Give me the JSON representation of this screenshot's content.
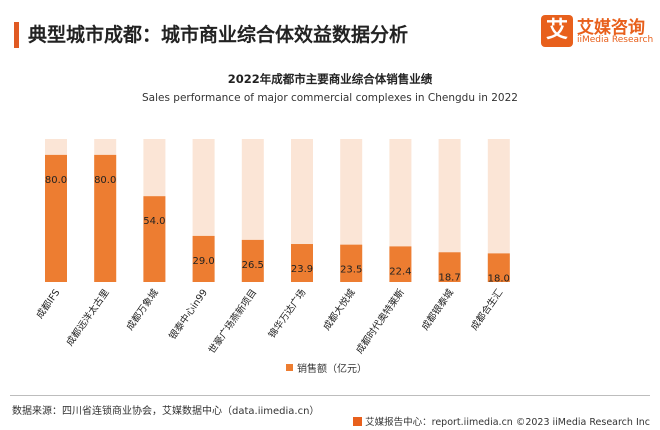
{
  "header": {
    "title": "典型城市成都：城市商业综合体效益数据分析"
  },
  "logo": {
    "mark": "艾",
    "name_cn": "艾媒咨询",
    "name_en": "iiMedia Research"
  },
  "colors": {
    "accent": "#e05a23",
    "bar": "#ed7d31",
    "bar_background": "#fbe5d6",
    "brand": "#e8601c"
  },
  "chart_data": {
    "type": "bar",
    "title": "2022年成都市主要商业综合体销售业绩",
    "subtitle": "Sales performance of major commercial complexes in Chengdu in 2022",
    "categories": [
      "成都IFS",
      "成都远洋太古里",
      "成都万象城",
      "银泰中心in99",
      "世豪广场燕新项目",
      "锦华万达广场",
      "成都大悦城",
      "成都时代奥特莱斯",
      "成都银泰城",
      "成都合生汇"
    ],
    "series": [
      {
        "name": "销售额（亿元）",
        "values": [
          80.0,
          80.0,
          54.0,
          29.0,
          26.5,
          23.9,
          23.5,
          22.4,
          18.7,
          18.0
        ]
      }
    ],
    "value_labels": [
      "80.0",
      "80.0",
      "54.0",
      "29.0",
      "26.5",
      "23.9",
      "23.5",
      "22.4",
      "18.7",
      "18.0"
    ],
    "background_max": 90,
    "ylim": [
      0,
      90
    ],
    "legend_position": "bottom",
    "grid": false
  },
  "legend": {
    "label": "销售额（亿元）"
  },
  "footer": {
    "source": "数据来源：四川省连锁商业协会，艾媒数据中心（data.iimedia.cn）",
    "right": "艾媒报告中心：report.iimedia.cn   ©2023  iiMedia Research  Inc"
  }
}
